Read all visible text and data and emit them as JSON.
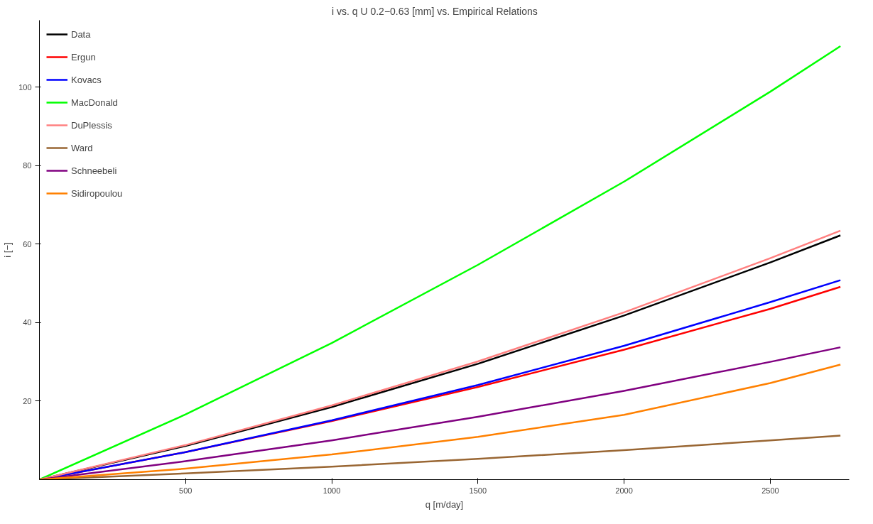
{
  "chart_data": {
    "type": "line",
    "title": "i vs. q        U 0.2−0.63 [mm] vs. Empirical Relations",
    "xlabel": "q [m/day]",
    "ylabel": "i [−]",
    "x": [
      0,
      500,
      1000,
      1500,
      2000,
      2500,
      2740
    ],
    "series": [
      {
        "name": "Data",
        "color": "#000000",
        "values": [
          0,
          8.6,
          18.5,
          29.5,
          41.8,
          55.3,
          62.2
        ]
      },
      {
        "name": "Ergun",
        "color": "#ff0000",
        "values": [
          0,
          7.0,
          14.9,
          23.6,
          33.1,
          43.5,
          49.1
        ]
      },
      {
        "name": "Kovacs",
        "color": "#0000ff",
        "values": [
          0,
          7.0,
          15.1,
          24.1,
          34.1,
          45.2,
          50.8
        ]
      },
      {
        "name": "MacDonald",
        "color": "#00ff00",
        "values": [
          0,
          16.6,
          34.8,
          54.7,
          75.9,
          98.8,
          110.4
        ]
      },
      {
        "name": "DuPlessis",
        "color": "#ff8080",
        "values": [
          0,
          8.8,
          18.9,
          30.1,
          42.6,
          56.4,
          63.4
        ]
      },
      {
        "name": "Ward",
        "color": "#996633",
        "values": [
          0,
          1.6,
          3.3,
          5.3,
          7.5,
          10.0,
          11.2
        ]
      },
      {
        "name": "Schneebeli",
        "color": "#800080",
        "values": [
          0,
          4.7,
          10.0,
          16.0,
          22.6,
          30.0,
          33.7
        ]
      },
      {
        "name": "Sidiropoulou",
        "color": "#ff8000",
        "values": [
          0,
          2.8,
          6.4,
          10.9,
          16.5,
          24.6,
          29.3
        ]
      }
    ],
    "xlim": [
      0,
      2770
    ],
    "ylim": [
      0,
      117
    ],
    "xticks": [
      500,
      1000,
      1500,
      2000,
      2500
    ],
    "yticks": [
      20,
      40,
      60,
      80,
      100
    ],
    "grid": false,
    "legend": "top left",
    "line_style": "solid",
    "marker": "none"
  }
}
